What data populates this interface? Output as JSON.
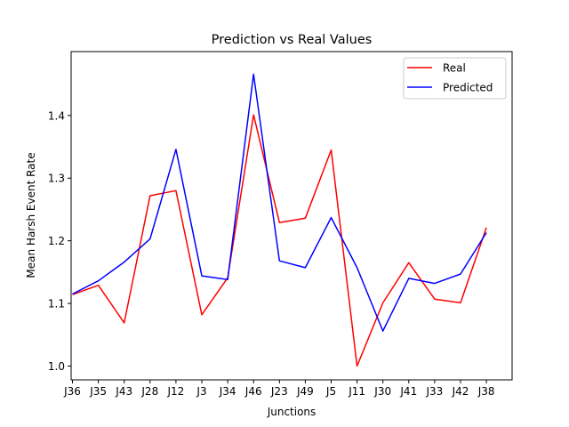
{
  "chart_data": {
    "type": "line",
    "title": "Prediction vs Real Values",
    "xlabel": "Junctions",
    "ylabel": "Mean Harsh Event Rate",
    "categories": [
      "J36",
      "J35",
      "J43",
      "J28",
      "J12",
      "J3",
      "J34",
      "J46",
      "J23",
      "J49",
      "J5",
      "J11",
      "J30",
      "J41",
      "J33",
      "J42",
      "J38"
    ],
    "ylim": [
      0.978,
      1.502
    ],
    "yticks": [
      1.0,
      1.1,
      1.2,
      1.3,
      1.4
    ],
    "ytick_labels": [
      "1.0",
      "1.1",
      "1.2",
      "1.3",
      "1.4"
    ],
    "grid": false,
    "legend_position": "top-right",
    "series": [
      {
        "name": "Real",
        "color": "#ff0000",
        "values": [
          1.114,
          1.129,
          1.069,
          1.272,
          1.28,
          1.082,
          1.141,
          1.401,
          1.229,
          1.236,
          1.345,
          1.0,
          1.101,
          1.165,
          1.107,
          1.101,
          1.221
        ]
      },
      {
        "name": "Predicted",
        "color": "#0000ff",
        "values": [
          1.115,
          1.136,
          1.166,
          1.203,
          1.346,
          1.144,
          1.138,
          1.466,
          1.168,
          1.157,
          1.237,
          1.157,
          1.056,
          1.14,
          1.132,
          1.147,
          1.213
        ]
      }
    ]
  }
}
